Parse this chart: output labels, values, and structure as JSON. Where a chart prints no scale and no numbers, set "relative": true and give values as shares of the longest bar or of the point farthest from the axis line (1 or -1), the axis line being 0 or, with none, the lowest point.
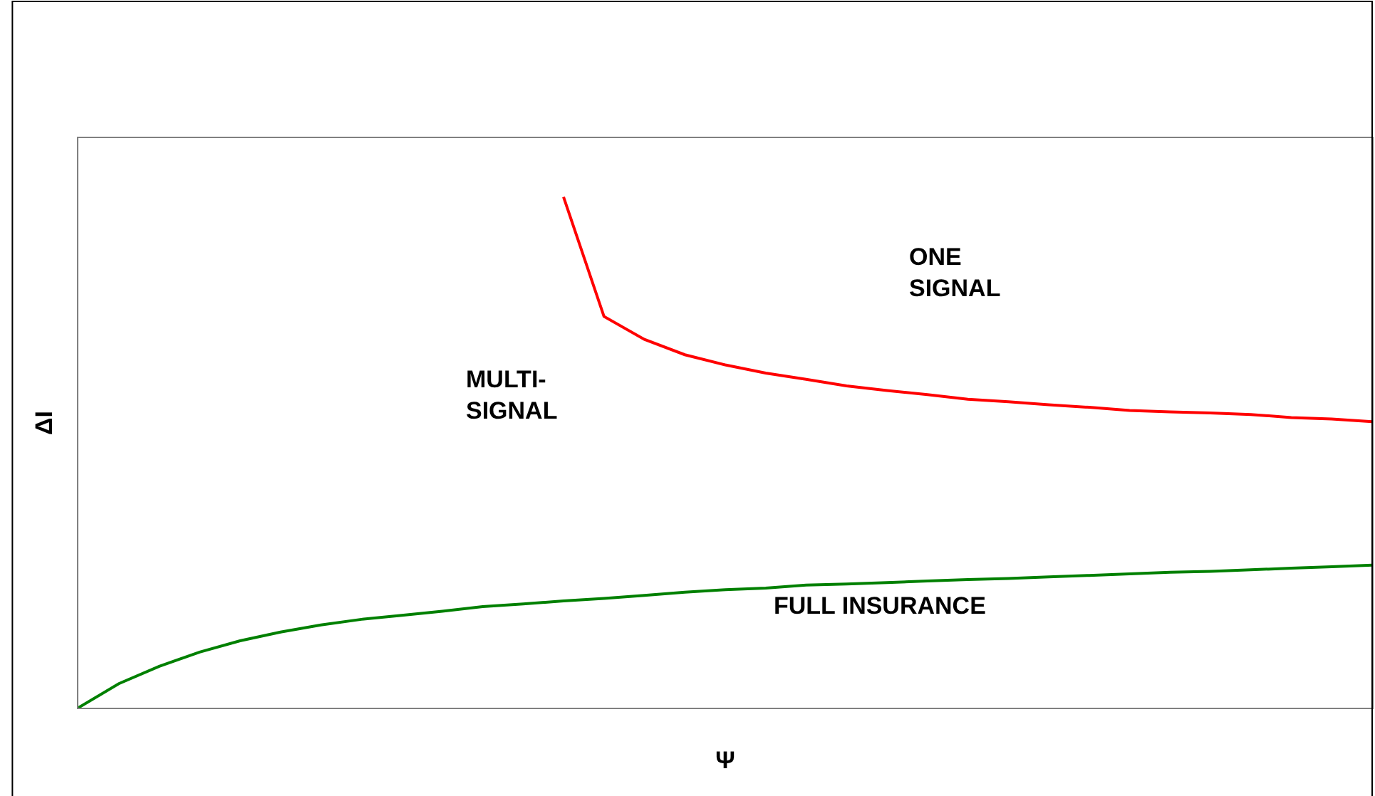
{
  "chart_data": {
    "type": "line",
    "relative": true,
    "xlabel": "Ψ",
    "ylabel": "ΔI",
    "categories": [
      null,
      null,
      null,
      null,
      null,
      null,
      null,
      null,
      null,
      null,
      null,
      null,
      null,
      null,
      null,
      null,
      null,
      null,
      null,
      null,
      null,
      null,
      null,
      null,
      null,
      null,
      null,
      null,
      null,
      null,
      null,
      null,
      null
    ],
    "series": [
      {
        "color": "#ff0000",
        "values": [
          null,
          null,
          null,
          null,
          null,
          null,
          null,
          null,
          null,
          null,
          null,
          null,
          1.0,
          0.766,
          0.721,
          0.691,
          0.671,
          0.655,
          0.643,
          0.63,
          0.621,
          0.613,
          0.604,
          0.599,
          0.593,
          0.588,
          0.582,
          0.579,
          0.577,
          0.574,
          0.568,
          0.565,
          0.56
        ]
      },
      {
        "color": "#008000",
        "values": [
          0,
          0.047,
          0.081,
          0.109,
          0.131,
          0.148,
          0.162,
          0.173,
          0.181,
          0.189,
          0.198,
          0.203,
          0.209,
          0.214,
          0.22,
          0.226,
          0.231,
          0.234,
          0.24,
          0.242,
          0.245,
          0.248,
          0.251,
          0.253,
          0.256,
          0.259,
          0.262,
          0.265,
          0.267,
          0.27,
          0.273,
          0.276,
          0.279
        ]
      }
    ],
    "annotations": [
      "ONE\nSIGNAL",
      "MULTI-\nSIGNAL",
      "FULL INSURANCE"
    ],
    "marker": "none",
    "line_style": "solid"
  }
}
